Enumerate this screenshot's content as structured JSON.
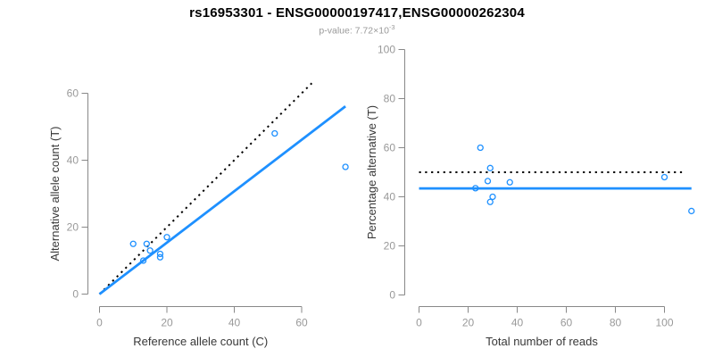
{
  "header": {
    "title": "rs16953301 - ENSG00000197417,ENSG00000262304",
    "p_value_label": "p-value: 7.72×10",
    "p_value_exponent": "-3"
  },
  "colors": {
    "accent_blue": "#1E90FF",
    "axis_line_gray": "#888888",
    "tick_label_gray": "#999999",
    "axis_title_dark": "#383838",
    "dotted_line_black": "#000000"
  },
  "chart_data": [
    {
      "type": "scatter",
      "name": "allele-counts-panel",
      "xlabel": "Reference allele count (C)",
      "ylabel": "Alternative allele count (T)",
      "xticks": [
        0,
        20,
        40,
        60
      ],
      "yticks": [
        0,
        20,
        40,
        60
      ],
      "xlim": [
        0,
        76
      ],
      "ylim": [
        0,
        63
      ],
      "grid": false,
      "legend": "none",
      "point_color": "#1E90FF",
      "points": [
        [
          10,
          15
        ],
        [
          13,
          10
        ],
        [
          14,
          15
        ],
        [
          15,
          13
        ],
        [
          18,
          11
        ],
        [
          18,
          12
        ],
        [
          20,
          17
        ],
        [
          52,
          48
        ],
        [
          73,
          38
        ]
      ],
      "lines": [
        {
          "name": "identity-line",
          "style": "dotted",
          "color": "#000000",
          "from": [
            0,
            0
          ],
          "to": [
            63,
            63
          ]
        },
        {
          "name": "fit-line",
          "style": "solid",
          "color": "#1E90FF",
          "from": [
            0,
            0
          ],
          "to": [
            73,
            56.1
          ]
        }
      ]
    },
    {
      "type": "scatter",
      "name": "percentage-panel",
      "xlabel": "Total number of reads",
      "ylabel": "Percentage alternative (T)",
      "xticks": [
        0,
        20,
        40,
        60,
        80,
        100
      ],
      "yticks": [
        0,
        20,
        40,
        60,
        80,
        100
      ],
      "xlim": [
        0,
        115
      ],
      "ylim": [
        0,
        100
      ],
      "grid": false,
      "legend": "none",
      "point_color": "#1E90FF",
      "points": [
        [
          23,
          43.5
        ],
        [
          25,
          60
        ],
        [
          28,
          46.4
        ],
        [
          29,
          51.7
        ],
        [
          29,
          37.9
        ],
        [
          30,
          40
        ],
        [
          37,
          45.9
        ],
        [
          100,
          48
        ],
        [
          111,
          34.2
        ]
      ],
      "lines": [
        {
          "name": "expected-50pct-line",
          "style": "dotted",
          "color": "#000000",
          "from": [
            0,
            50
          ],
          "to": [
            108.5,
            50
          ]
        },
        {
          "name": "mean-percentage-line",
          "style": "solid",
          "color": "#1E90FF",
          "from": [
            0,
            43.4
          ],
          "to": [
            111,
            43.4
          ]
        }
      ]
    }
  ]
}
